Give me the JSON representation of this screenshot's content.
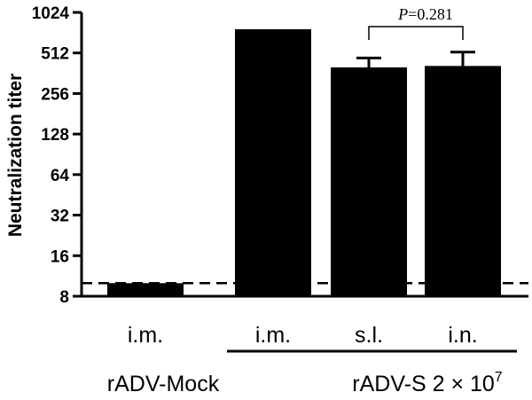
{
  "chart_data": {
    "type": "bar",
    "title": "",
    "ylabel": "Neutralization titer",
    "xlabel": "",
    "y_scale": "log2",
    "ylim": [
      8,
      1024
    ],
    "yticks": [
      8,
      16,
      32,
      64,
      128,
      256,
      512,
      1024
    ],
    "ytick_labels": [
      "8",
      "16",
      "32",
      "64",
      "128",
      "256",
      "512",
      "1024"
    ],
    "categories": [
      "i.m.",
      "i.m.",
      "s.l.",
      "i.n."
    ],
    "values": [
      10,
      768,
      400,
      410
    ],
    "error_upper": [
      null,
      null,
      470,
      520
    ],
    "bar_color": "#000000",
    "detection_limit": 10,
    "detection_limit_style": "dashed",
    "groups": [
      {
        "label": "rADV-Mock",
        "categories": [
          0
        ]
      },
      {
        "label": "rADV-S 2 × 10",
        "superscript": "7",
        "categories": [
          1,
          2,
          3
        ]
      }
    ],
    "annotation": {
      "p_symbol": "P",
      "p_value": "=0.281",
      "between": [
        2,
        3
      ]
    }
  }
}
